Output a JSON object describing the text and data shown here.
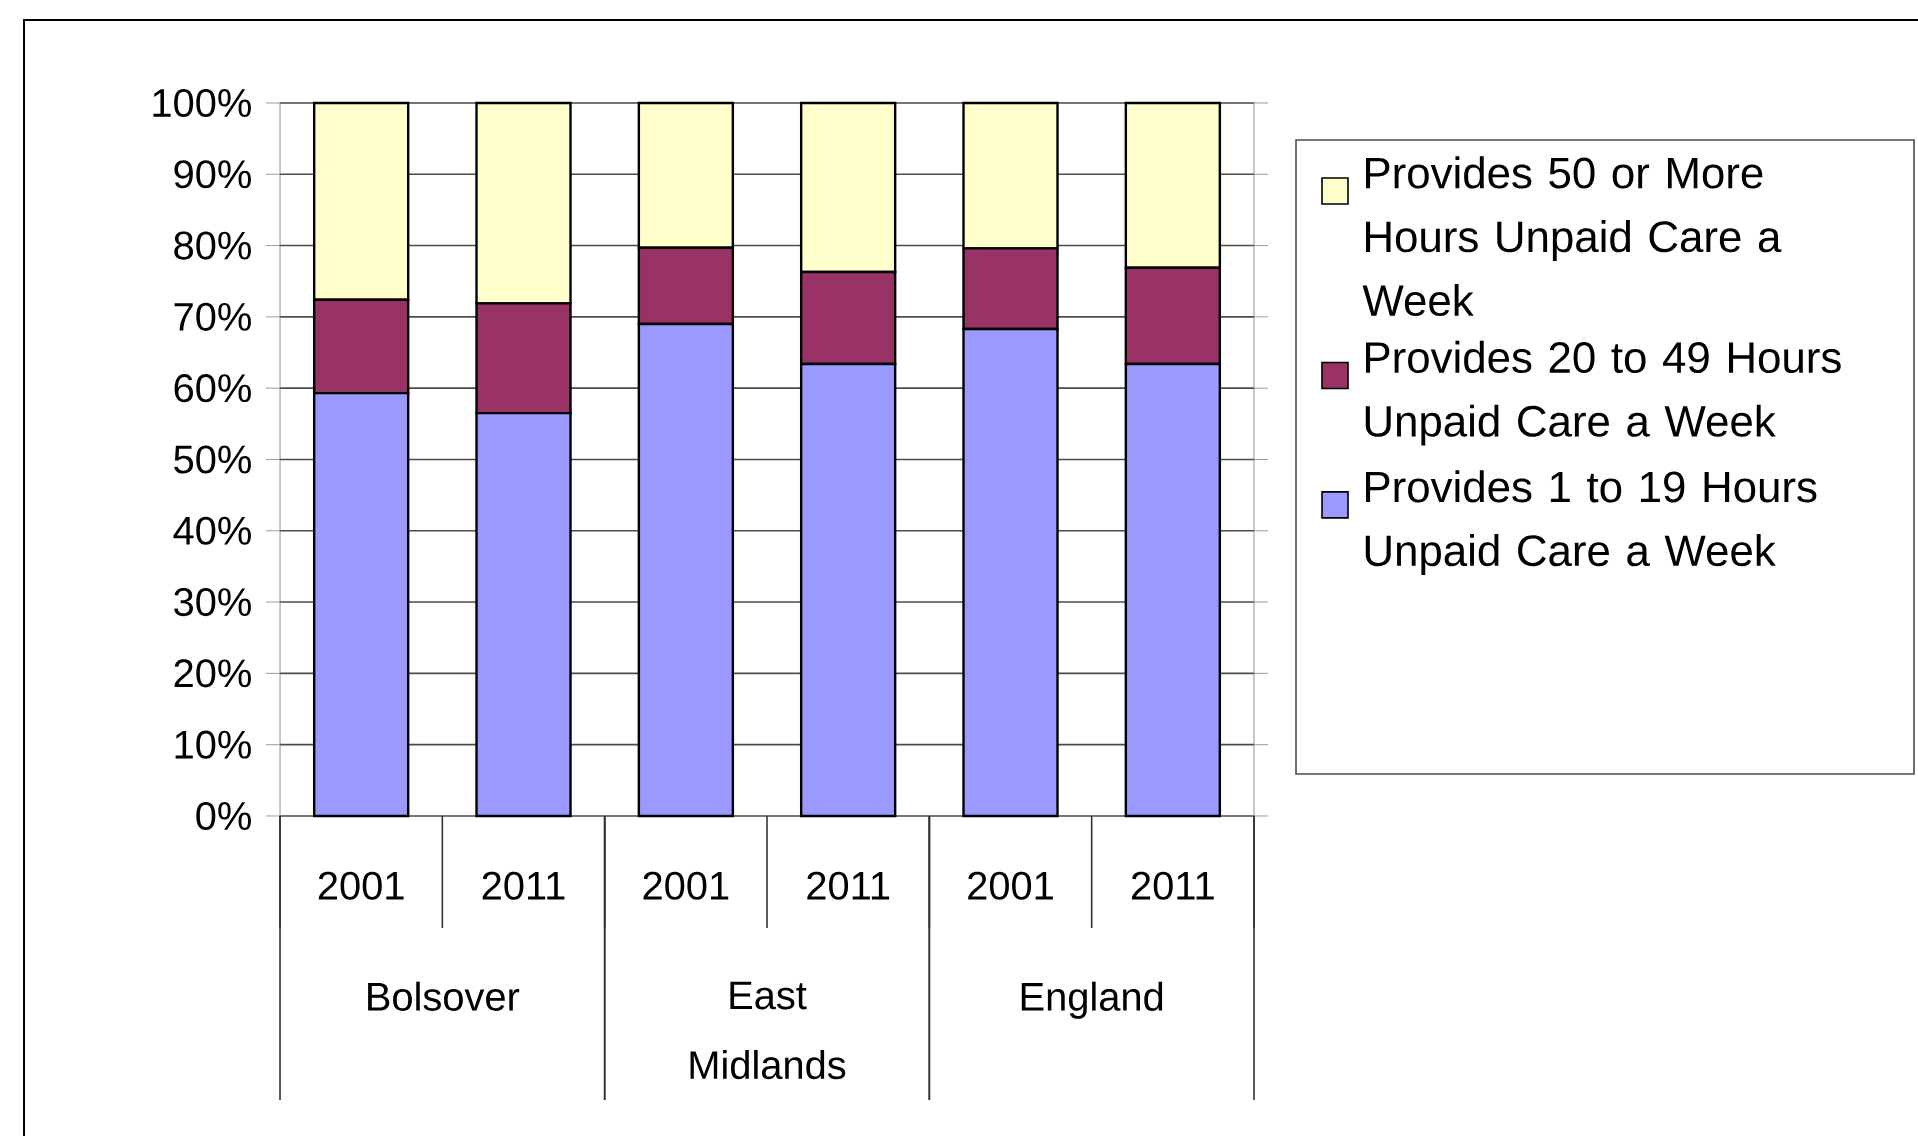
{
  "chart_data": {
    "type": "bar",
    "stacked": true,
    "grid": "y",
    "legend": "right",
    "categories": [
      "2001",
      "2011",
      "2001",
      "2011",
      "2001",
      "2011"
    ],
    "annotations": [
      "Bolsover",
      "East Midlands",
      "England"
    ],
    "series": [
      {
        "name": "Provides 1 to 19 Hours Unpaid Care a Week",
        "color": "#9999ff",
        "values": [
          59.3,
          56.5,
          69.0,
          63.4,
          68.3,
          63.4
        ]
      },
      {
        "name": "Provides 20 to 49 Hours Unpaid Care a Week",
        "color": "#993366",
        "values": [
          13.1,
          15.4,
          10.7,
          12.9,
          11.3,
          13.5
        ]
      },
      {
        "name": "Provides 50 or More Hours Unpaid Care a Week",
        "color": "#ffffcc",
        "values": [
          27.6,
          28.1,
          20.3,
          23.7,
          20.4,
          23.1
        ]
      }
    ],
    "ylim": [
      0,
      100
    ],
    "yticks": [
      {
        "value": 0,
        "label": "0%"
      },
      {
        "value": 10,
        "label": "10%"
      },
      {
        "value": 20,
        "label": "20%"
      },
      {
        "value": 30,
        "label": "30%"
      },
      {
        "value": 40,
        "label": "40%"
      },
      {
        "value": 50,
        "label": "50%"
      },
      {
        "value": 60,
        "label": "60%"
      },
      {
        "value": 70,
        "label": "70%"
      },
      {
        "value": 80,
        "label": "80%"
      },
      {
        "value": 90,
        "label": "90%"
      },
      {
        "value": 100,
        "label": "100%"
      }
    ]
  }
}
